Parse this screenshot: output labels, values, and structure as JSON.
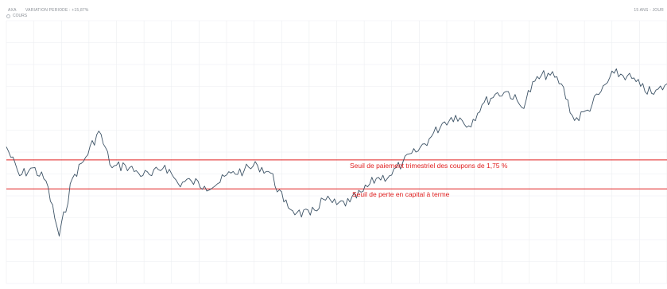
{
  "header": {
    "ticker": "AXA",
    "variation": "VARIATION PERIODE : +15,87%",
    "period": "15 ANS - JOUR"
  },
  "legend": {
    "label": "COURS"
  },
  "chart_data": {
    "type": "line",
    "series": [
      {
        "name": "COURS",
        "color": "#3d5366",
        "x": [
          0,
          2,
          4,
          6,
          8,
          10,
          12,
          14,
          16,
          18,
          20,
          22,
          24,
          26,
          28,
          30,
          32,
          34,
          36,
          38,
          40,
          42,
          44,
          46,
          48,
          50,
          52,
          54,
          56,
          58,
          60,
          62,
          64,
          66,
          68,
          70,
          72,
          74,
          76,
          78,
          80,
          82,
          84,
          86,
          88,
          90,
          92,
          94,
          96,
          98,
          100
        ],
        "y": [
          52,
          41,
          44,
          39,
          18,
          40,
          48,
          58,
          44,
          45,
          42,
          41,
          45,
          38,
          39,
          37,
          38,
          42,
          43,
          45,
          42,
          31,
          27,
          26,
          32,
          30,
          31,
          35,
          40,
          41,
          46,
          50,
          55,
          61,
          64,
          60,
          68,
          72,
          73,
          67,
          77,
          80,
          76,
          62,
          66,
          73,
          80,
          79,
          75,
          72,
          76
        ]
      }
    ],
    "ylim": [
      0,
      100
    ],
    "thresholds": [
      {
        "value": 47,
        "label": "Seuil de paiement trimestriel des coupons de 1,75 %",
        "color": "#e02020"
      },
      {
        "value": 36,
        "label": "Seuil de perte en capital à terme",
        "color": "#e02020"
      }
    ],
    "grid": true
  }
}
